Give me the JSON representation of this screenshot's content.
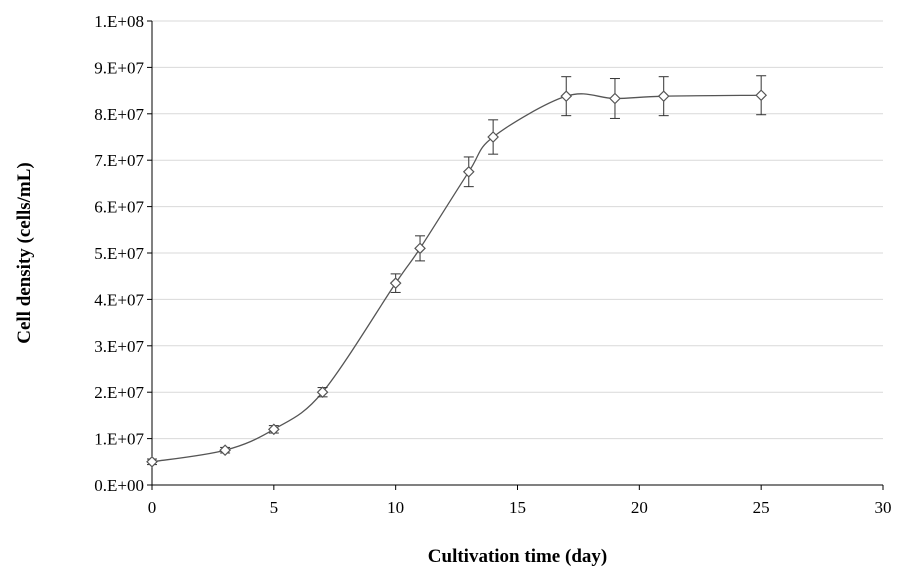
{
  "chart_data": {
    "type": "line",
    "title": "",
    "xlabel": "Cultivation time (day)",
    "ylabel": "Cell density (cells/mL)",
    "xlim": [
      0,
      30
    ],
    "ylim": [
      0,
      100000000
    ],
    "x_ticks": [
      0,
      5,
      10,
      15,
      20,
      25,
      30
    ],
    "x_tick_labels": [
      "0",
      "5",
      "10",
      "15",
      "20",
      "25",
      "30"
    ],
    "y_ticks": [
      0,
      10000000,
      20000000,
      30000000,
      40000000,
      50000000,
      60000000,
      70000000,
      80000000,
      90000000,
      100000000
    ],
    "y_tick_labels": [
      "0.E+00",
      "1.E+07",
      "2.E+07",
      "3.E+07",
      "4.E+07",
      "5.E+07",
      "6.E+07",
      "7.E+07",
      "8.E+07",
      "9.E+07",
      "1.E+08"
    ],
    "grid": "horizontal",
    "legend": "none",
    "marker": "diamond",
    "line_style": "smooth",
    "colors": {
      "line": "#555555",
      "marker": "#555555",
      "grid": "#d9d9d9",
      "axis": "#000000"
    },
    "series": [
      {
        "x": [
          0,
          3,
          5,
          7,
          10,
          11,
          13,
          14,
          17,
          19,
          21,
          25
        ],
        "y": [
          5000000,
          7500000,
          12000000,
          20000000,
          43500000,
          51000000,
          67500000,
          75000000,
          83800000,
          83300000,
          83800000,
          84000000
        ],
        "error": [
          600000,
          600000,
          800000,
          1000000,
          2000000,
          2700000,
          3200000,
          3700000,
          4200000,
          4300000,
          4200000,
          4200000
        ]
      }
    ]
  }
}
